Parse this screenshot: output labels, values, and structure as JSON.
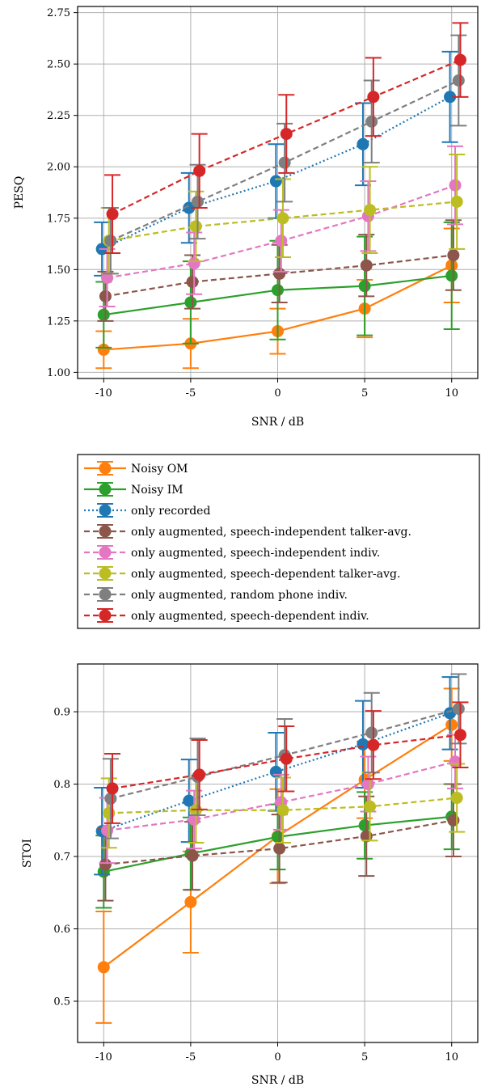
{
  "colors": {
    "noisy_om": "#ff7f0e",
    "noisy_im": "#2ca02c",
    "only_recorded": "#1f77b4",
    "si_talker_avg": "#8c564b",
    "si_indiv": "#e377c2",
    "sd_talker_avg": "#bcbd22",
    "random_phone": "#7f7f7f",
    "sd_indiv": "#d62728"
  },
  "legend": {
    "entries": [
      {
        "label": "Noisy OM",
        "color": "#ff7f0e",
        "dash": "solid"
      },
      {
        "label": "Noisy IM",
        "color": "#2ca02c",
        "dash": "solid"
      },
      {
        "label": "only recorded",
        "color": "#1f77b4",
        "dash": "dotted"
      },
      {
        "label": "only augmented, speech-independent talker-avg.",
        "color": "#8c564b",
        "dash": "dashed"
      },
      {
        "label": "only augmented, speech-independent indiv.",
        "color": "#e377c2",
        "dash": "dashed"
      },
      {
        "label": "only augmented, speech-dependent talker-avg.",
        "color": "#bcbd22",
        "dash": "dashed"
      },
      {
        "label": "only augmented, random phone indiv.",
        "color": "#7f7f7f",
        "dash": "dashed"
      },
      {
        "label": "only augmented, speech-dependent indiv.",
        "color": "#d62728",
        "dash": "dashed"
      }
    ]
  },
  "chart_data": [
    {
      "type": "line",
      "xlabel": "SNR / dB",
      "ylabel": "PESQ",
      "x": [
        -10,
        -5,
        0,
        5,
        10
      ],
      "x_tick_labels": [
        "-10",
        "-5",
        "0",
        "5",
        "10"
      ],
      "xlim": [
        -11.5,
        11.5
      ],
      "ylim": [
        0.97,
        2.78
      ],
      "y_ticks": [
        1.0,
        1.25,
        1.5,
        1.75,
        2.0,
        2.25,
        2.5,
        2.75
      ],
      "y_tick_labels": [
        "1.00",
        "1.25",
        "1.50",
        "1.75",
        "2.00",
        "2.25",
        "2.50",
        "2.75"
      ],
      "grid": true,
      "series": [
        {
          "name": "Noisy OM",
          "color": "#ff7f0e",
          "dash": "solid",
          "offset": 0.0,
          "values": [
            1.11,
            1.14,
            1.2,
            1.31,
            1.52
          ],
          "err": [
            0.09,
            0.12,
            0.11,
            0.14,
            0.18
          ]
        },
        {
          "name": "Noisy IM",
          "color": "#2ca02c",
          "dash": "solid",
          "offset": 0.0,
          "values": [
            1.28,
            1.34,
            1.4,
            1.42,
            1.47
          ],
          "err": [
            0.16,
            0.2,
            0.24,
            0.24,
            0.26
          ]
        },
        {
          "name": "only recorded",
          "color": "#1f77b4",
          "dash": "dotted",
          "offset": -0.1,
          "values": [
            1.6,
            1.8,
            1.93,
            2.11,
            2.34
          ],
          "err": [
            0.13,
            0.17,
            0.18,
            0.2,
            0.22
          ]
        },
        {
          "name": "only augmented, speech-independent talker-avg.",
          "color": "#8c564b",
          "dash": "dashed",
          "offset": 0.1,
          "values": [
            1.37,
            1.44,
            1.48,
            1.52,
            1.57
          ],
          "err": [
            0.12,
            0.13,
            0.14,
            0.15,
            0.17
          ]
        },
        {
          "name": "only augmented, speech-independent indiv.",
          "color": "#e377c2",
          "dash": "dashed",
          "offset": 0.2,
          "values": [
            1.46,
            1.53,
            1.64,
            1.76,
            1.91
          ],
          "err": [
            0.14,
            0.15,
            0.15,
            0.17,
            0.19
          ]
        },
        {
          "name": "only augmented, speech-dependent talker-avg.",
          "color": "#bcbd22",
          "dash": "dashed",
          "offset": 0.3,
          "values": [
            1.64,
            1.71,
            1.75,
            1.79,
            1.83
          ],
          "err": [
            0.16,
            0.17,
            0.19,
            0.21,
            0.23
          ]
        },
        {
          "name": "only augmented, random phone indiv.",
          "color": "#7f7f7f",
          "dash": "dashed",
          "offset": 0.4,
          "values": [
            1.64,
            1.83,
            2.02,
            2.22,
            2.42
          ],
          "err": [
            0.16,
            0.18,
            0.19,
            0.2,
            0.22
          ]
        },
        {
          "name": "only augmented, speech-dependent indiv.",
          "color": "#d62728",
          "dash": "dashed",
          "offset": 0.5,
          "values": [
            1.77,
            1.98,
            2.16,
            2.34,
            2.52
          ],
          "err": [
            0.19,
            0.18,
            0.19,
            0.19,
            0.18
          ]
        }
      ]
    },
    {
      "type": "line",
      "xlabel": "SNR / dB",
      "ylabel": "STOI",
      "x": [
        -10,
        -5,
        0,
        5,
        10
      ],
      "x_tick_labels": [
        "-10",
        "-5",
        "0",
        "5",
        "10"
      ],
      "xlim": [
        -11.5,
        11.5
      ],
      "ylim": [
        0.443,
        0.966
      ],
      "y_ticks": [
        0.5,
        0.6,
        0.7,
        0.8,
        0.9
      ],
      "y_tick_labels": [
        "0.5",
        "0.6",
        "0.7",
        "0.8",
        "0.9"
      ],
      "grid": true,
      "series": [
        {
          "name": "Noisy OM",
          "color": "#ff7f0e",
          "dash": "solid",
          "offset": 0.0,
          "values": [
            0.547,
            0.637,
            0.728,
            0.806,
            0.882
          ],
          "err": [
            0.077,
            0.07,
            0.065,
            0.053,
            0.05
          ]
        },
        {
          "name": "Noisy IM",
          "color": "#2ca02c",
          "dash": "solid",
          "offset": 0.0,
          "values": [
            0.679,
            0.704,
            0.727,
            0.743,
            0.755
          ],
          "err": [
            0.05,
            0.05,
            0.045,
            0.046,
            0.045
          ]
        },
        {
          "name": "only recorded",
          "color": "#1f77b4",
          "dash": "dotted",
          "offset": -0.1,
          "values": [
            0.735,
            0.777,
            0.817,
            0.855,
            0.898
          ],
          "err": [
            0.06,
            0.057,
            0.054,
            0.06,
            0.05
          ]
        },
        {
          "name": "only augmented, speech-independent talker-avg.",
          "color": "#8c564b",
          "dash": "dashed",
          "offset": 0.1,
          "values": [
            0.689,
            0.701,
            0.711,
            0.728,
            0.75
          ],
          "err": [
            0.05,
            0.047,
            0.047,
            0.055,
            0.05
          ]
        },
        {
          "name": "only augmented, speech-independent indiv.",
          "color": "#e377c2",
          "dash": "dashed",
          "offset": 0.2,
          "values": [
            0.736,
            0.751,
            0.775,
            0.8,
            0.831
          ],
          "err": [
            0.045,
            0.04,
            0.038,
            0.038,
            0.037
          ]
        },
        {
          "name": "only augmented, speech-dependent talker-avg.",
          "color": "#bcbd22",
          "dash": "dashed",
          "offset": 0.3,
          "values": [
            0.76,
            0.764,
            0.764,
            0.769,
            0.781
          ],
          "err": [
            0.048,
            0.045,
            0.045,
            0.047,
            0.047
          ]
        },
        {
          "name": "only augmented, random phone indiv.",
          "color": "#7f7f7f",
          "dash": "dashed",
          "offset": 0.4,
          "values": [
            0.78,
            0.81,
            0.84,
            0.871,
            0.904
          ],
          "err": [
            0.055,
            0.053,
            0.05,
            0.055,
            0.048
          ]
        },
        {
          "name": "only augmented, speech-dependent indiv.",
          "color": "#d62728",
          "dash": "dashed",
          "offset": 0.5,
          "values": [
            0.794,
            0.813,
            0.835,
            0.854,
            0.868
          ],
          "err": [
            0.048,
            0.048,
            0.045,
            0.047,
            0.045
          ]
        }
      ]
    }
  ]
}
